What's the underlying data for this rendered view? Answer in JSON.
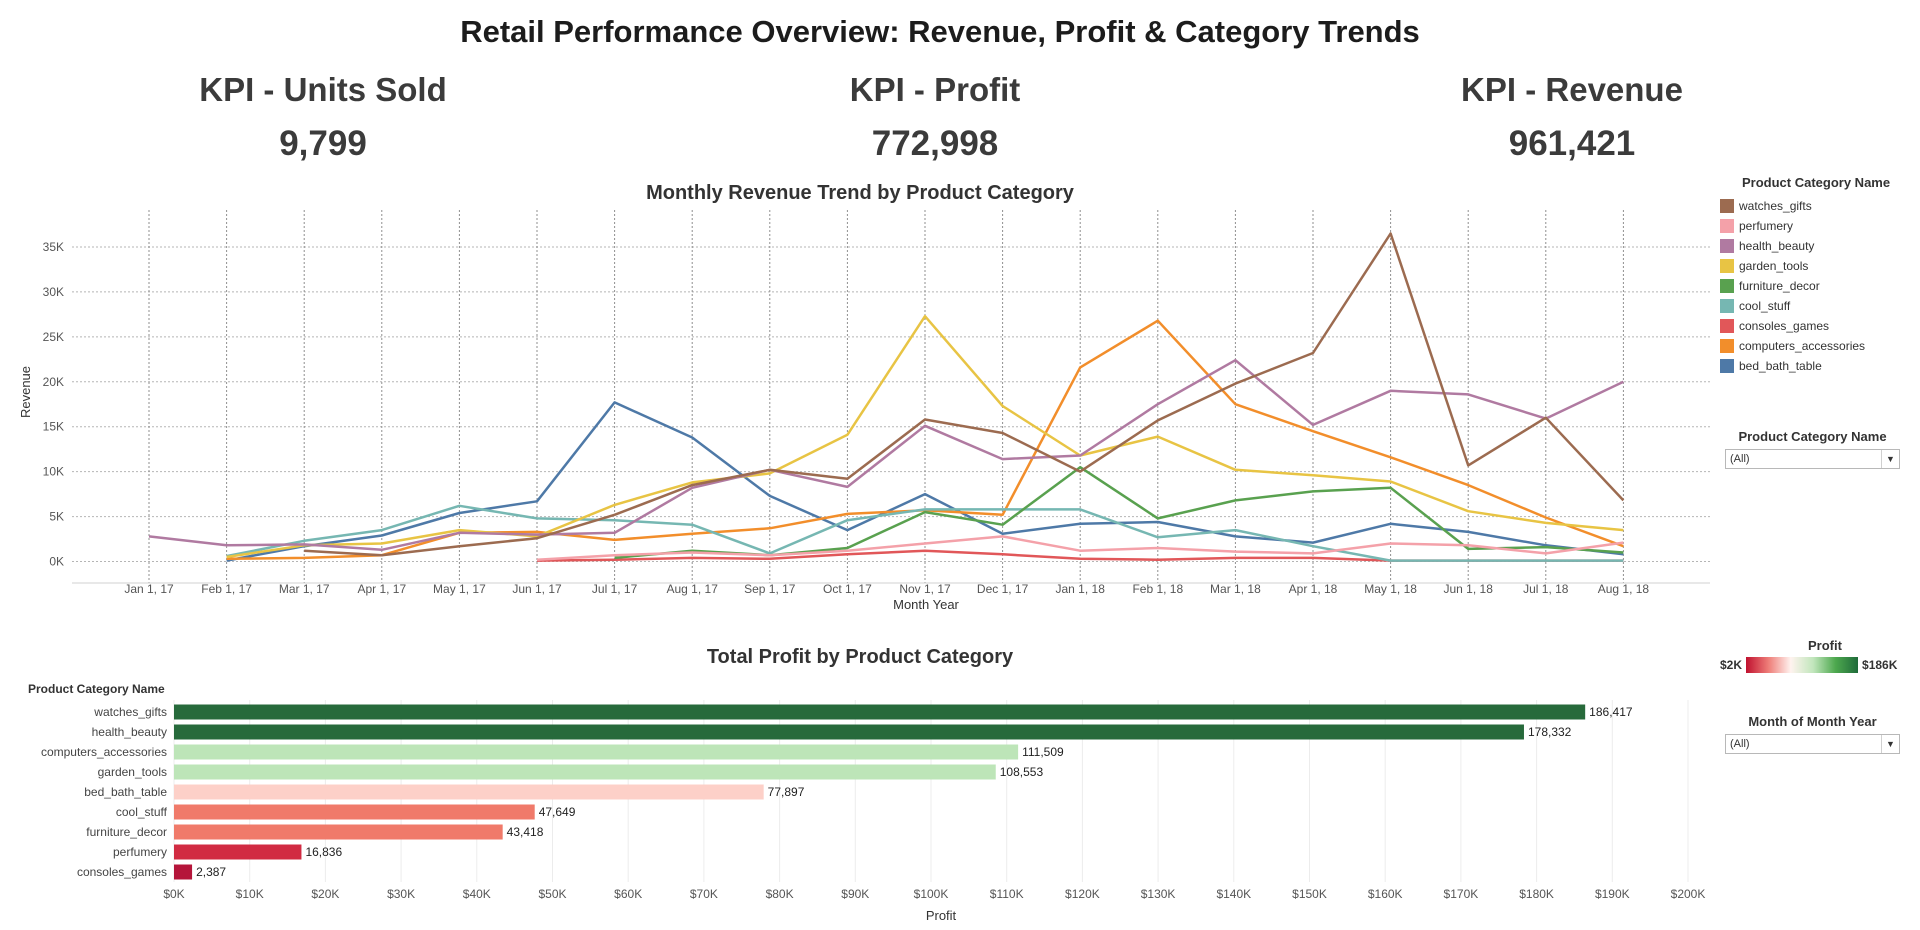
{
  "title": "Retail Performance Overview: Revenue, Profit & Category Trends",
  "kpis": {
    "units": {
      "label": "KPI - Units Sold",
      "value": "9,799"
    },
    "profit": {
      "label": "KPI - Profit",
      "value": "772,998"
    },
    "revenue": {
      "label": "KPI - Revenue",
      "value": "961,421"
    }
  },
  "legend": {
    "title": "Product Category Name",
    "items": [
      {
        "name": "watches_gifts",
        "color": "#9c6b50"
      },
      {
        "name": "perfumery",
        "color": "#f4a1a9"
      },
      {
        "name": "health_beauty",
        "color": "#b07aa1"
      },
      {
        "name": "garden_tools",
        "color": "#e8c444"
      },
      {
        "name": "furniture_decor",
        "color": "#59a14f"
      },
      {
        "name": "cool_stuff",
        "color": "#76b7b2"
      },
      {
        "name": "consoles_games",
        "color": "#e15759"
      },
      {
        "name": "computers_accessories",
        "color": "#f28e2b"
      },
      {
        "name": "bed_bath_table",
        "color": "#4e79a7"
      }
    ]
  },
  "filters": {
    "category": {
      "title": "Product Category Name",
      "value": "(All)"
    },
    "month": {
      "title": "Month of Month Year",
      "value": "(All)"
    }
  },
  "profit_color_legend": {
    "title": "Profit",
    "min_label": "$2K",
    "max_label": "$186K"
  },
  "chart_data": [
    {
      "type": "line",
      "title": "Monthly Revenue Trend by Product Category",
      "xlabel": "Month Year",
      "ylabel": "Revenue",
      "x": [
        "Jan 1, 17",
        "Feb 1, 17",
        "Mar 1, 17",
        "Apr 1, 17",
        "May 1, 17",
        "Jun 1, 17",
        "Jul 1, 17",
        "Aug 1, 17",
        "Sep 1, 17",
        "Oct 1, 17",
        "Nov 1, 17",
        "Dec 1, 17",
        "Jan 1, 18",
        "Feb 1, 18",
        "Mar 1, 18",
        "Apr 1, 18",
        "May 1, 18",
        "Jun 1, 18",
        "Jul 1, 18",
        "Aug 1, 18"
      ],
      "ylim": [
        -1500,
        38000
      ],
      "yticks": [
        0,
        5000,
        10000,
        15000,
        20000,
        25000,
        30000,
        35000
      ],
      "ytick_labels": [
        "0K",
        "5K",
        "10K",
        "15K",
        "20K",
        "25K",
        "30K",
        "35K"
      ],
      "grid": true,
      "legend": "right",
      "series": [
        {
          "name": "watches_gifts",
          "color": "#9c6b50",
          "values": [
            null,
            null,
            1200,
            700,
            1700,
            2600,
            5200,
            8500,
            10200,
            9200,
            15800,
            14300,
            10000,
            15700,
            19800,
            23200,
            36500,
            10700,
            16000,
            6800
          ]
        },
        {
          "name": "perfumery",
          "color": "#f4a1a9",
          "values": [
            null,
            null,
            null,
            null,
            null,
            200,
            700,
            1000,
            700,
            1200,
            2000,
            2800,
            1200,
            1500,
            1100,
            900,
            2000,
            1800,
            900,
            2100
          ]
        },
        {
          "name": "health_beauty",
          "color": "#b07aa1",
          "values": [
            2800,
            1800,
            1900,
            1300,
            3200,
            3000,
            3200,
            8200,
            10200,
            8300,
            15100,
            11400,
            11800,
            17500,
            22400,
            15200,
            19000,
            18600,
            15900,
            20000
          ]
        },
        {
          "name": "garden_tools",
          "color": "#e8c444",
          "values": [
            null,
            500,
            1800,
            2000,
            3500,
            2800,
            6300,
            8800,
            9800,
            14100,
            27300,
            17300,
            11800,
            13900,
            10200,
            9600,
            8900,
            5600,
            4300,
            3500
          ]
        },
        {
          "name": "furniture_decor",
          "color": "#59a14f",
          "values": [
            null,
            null,
            null,
            null,
            null,
            null,
            400,
            1200,
            700,
            1500,
            5500,
            4100,
            10500,
            4800,
            6800,
            7800,
            8200,
            1400,
            1600,
            1000
          ]
        },
        {
          "name": "cool_stuff",
          "color": "#76b7b2",
          "values": [
            null,
            600,
            2300,
            3500,
            6200,
            4800,
            4600,
            4100,
            900,
            4600,
            5800,
            5800,
            5800,
            2700,
            3500,
            1700,
            100,
            100,
            100,
            100
          ]
        },
        {
          "name": "consoles_games",
          "color": "#e15759",
          "values": [
            null,
            null,
            null,
            null,
            null,
            100,
            200,
            400,
            300,
            800,
            1200,
            800,
            300,
            200,
            400,
            400,
            100,
            100,
            100,
            100
          ]
        },
        {
          "name": "computers_accessories",
          "color": "#f28e2b",
          "values": [
            null,
            300,
            400,
            700,
            3200,
            3300,
            2400,
            3100,
            3700,
            5300,
            5700,
            5200,
            21600,
            26800,
            17500,
            14500,
            11600,
            8500,
            4900,
            1700
          ]
        },
        {
          "name": "bed_bath_table",
          "color": "#4e79a7",
          "values": [
            null,
            100,
            1700,
            2900,
            5400,
            6700,
            17700,
            13800,
            7300,
            3500,
            7500,
            3100,
            4200,
            4400,
            2800,
            2100,
            4200,
            3300,
            1800,
            800
          ]
        }
      ]
    },
    {
      "type": "bar",
      "orientation": "horizontal",
      "title": "Total Profit by Product Category",
      "xlabel": "Profit",
      "ylabel": "Product Category Name",
      "categories": [
        "watches_gifts",
        "health_beauty",
        "computers_accessories",
        "garden_tools",
        "bed_bath_table",
        "cool_stuff",
        "furniture_decor",
        "perfumery",
        "consoles_games"
      ],
      "values": [
        186417,
        178332,
        111509,
        108553,
        77897,
        47649,
        43418,
        16836,
        2387
      ],
      "value_labels": [
        "186,417",
        "178,332",
        "111,509",
        "108,553",
        "77,897",
        "47,649",
        "43,418",
        "16,836",
        "2,387"
      ],
      "colors": [
        "#276a3b",
        "#276a3b",
        "#bde5b8",
        "#bde5b8",
        "#fdd0c8",
        "#f07a6a",
        "#f07a6a",
        "#d12b42",
        "#b5153a"
      ],
      "xlim": [
        0,
        200000
      ],
      "xticks": [
        0,
        10000,
        20000,
        30000,
        40000,
        50000,
        60000,
        70000,
        80000,
        90000,
        100000,
        110000,
        120000,
        130000,
        140000,
        150000,
        160000,
        170000,
        180000,
        190000,
        200000
      ],
      "xtick_labels": [
        "$0K",
        "$10K",
        "$20K",
        "$30K",
        "$40K",
        "$50K",
        "$60K",
        "$70K",
        "$80K",
        "$90K",
        "$100K",
        "$110K",
        "$120K",
        "$130K",
        "$140K",
        "$150K",
        "$160K",
        "$170K",
        "$180K",
        "$190K",
        "$200K"
      ],
      "grid": true
    }
  ]
}
